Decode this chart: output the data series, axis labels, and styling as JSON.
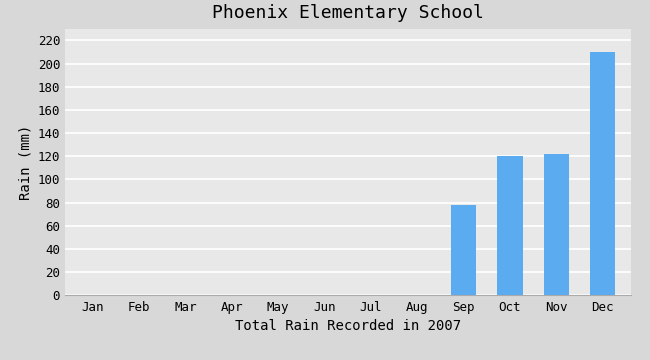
{
  "months": [
    "Jan",
    "Feb",
    "Mar",
    "Apr",
    "May",
    "Jun",
    "Jul",
    "Aug",
    "Sep",
    "Oct",
    "Nov",
    "Dec"
  ],
  "values": [
    0,
    0,
    0,
    0,
    0,
    0,
    0,
    0,
    78,
    120,
    122,
    210
  ],
  "bar_color": "#5aabf0",
  "title": "Phoenix Elementary School",
  "xlabel": "Total Rain Recorded in 2007",
  "ylabel": "Rain (mm)",
  "ylim": [
    0,
    230
  ],
  "yticks": [
    0,
    20,
    40,
    60,
    80,
    100,
    120,
    140,
    160,
    180,
    200,
    220
  ],
  "figure_bg_color": "#d8d8d8",
  "plot_bg_color": "#e8e8e8",
  "title_fontsize": 13,
  "label_fontsize": 10,
  "tick_fontsize": 9,
  "font_family": "monospace",
  "grid_color": "#ffffff",
  "bar_width": 0.55
}
